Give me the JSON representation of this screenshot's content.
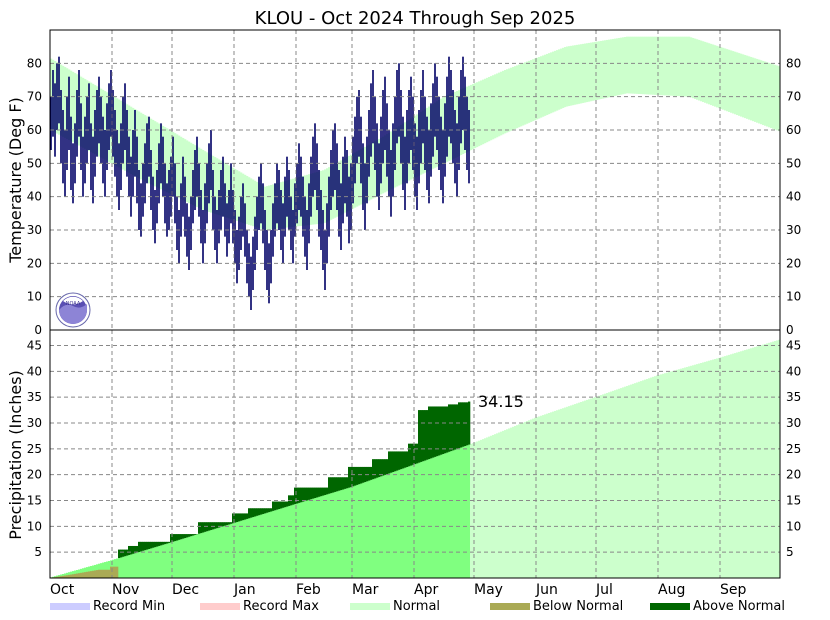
{
  "chart_data": [
    {
      "type": "temperature-range",
      "title": "KLOU - Oct 2024 Through Sep 2025",
      "ylabel": "Temperature (Deg F)",
      "ylim": [
        0,
        90
      ],
      "yticks": [
        0,
        10,
        20,
        30,
        40,
        50,
        60,
        70,
        80
      ],
      "grid": true,
      "x_months": [
        "Oct",
        "Nov",
        "Dec",
        "Jan",
        "Feb",
        "Mar",
        "Apr",
        "May",
        "Jun",
        "Jul",
        "Aug",
        "Sep"
      ],
      "x_days": [
        31,
        30,
        31,
        31,
        28,
        31,
        30,
        31,
        30,
        31,
        31,
        30
      ],
      "observed_through_day": 210,
      "normal_high_monthly": [
        76,
        65,
        54,
        43,
        48,
        58,
        70,
        78,
        85,
        88,
        88,
        82
      ],
      "normal_low_monthly": [
        55,
        45,
        36,
        30,
        32,
        41,
        50,
        59,
        67,
        71,
        70,
        63
      ],
      "observed_daily": {
        "highs": [
          70,
          78,
          74,
          80,
          82,
          72,
          66,
          60,
          70,
          76,
          64,
          56,
          62,
          72,
          78,
          68,
          58,
          64,
          70,
          74,
          62,
          58,
          66,
          72,
          76,
          70,
          64,
          60,
          68,
          74,
          78,
          72,
          66,
          60,
          56,
          62,
          70,
          74,
          66,
          58,
          52,
          60,
          66,
          58,
          48,
          44,
          50,
          56,
          62,
          64,
          54,
          46,
          42,
          48,
          56,
          62,
          58,
          50,
          44,
          48,
          52,
          58,
          50,
          40,
          36,
          44,
          52,
          46,
          38,
          34,
          40,
          48,
          54,
          58,
          50,
          42,
          36,
          44,
          50,
          56,
          60,
          48,
          40,
          36,
          42,
          48,
          52,
          44,
          38,
          42,
          50,
          42,
          36,
          30,
          34,
          40,
          44,
          38,
          30,
          26,
          22,
          28,
          34,
          40,
          46,
          50,
          44,
          36,
          30,
          26,
          30,
          38,
          44,
          50,
          48,
          42,
          38,
          46,
          52,
          48,
          40,
          36,
          44,
          50,
          56,
          52,
          46,
          40,
          36,
          44,
          52,
          58,
          62,
          56,
          48,
          42,
          36,
          30,
          38,
          46,
          54,
          60,
          62,
          56,
          48,
          44,
          52,
          58,
          54,
          46,
          50,
          58,
          64,
          70,
          72,
          64,
          56,
          50,
          58,
          66,
          74,
          78,
          70,
          62,
          56,
          64,
          72,
          76,
          68,
          60,
          54,
          62,
          70,
          78,
          80,
          72,
          64,
          58,
          66,
          72,
          76,
          70,
          62,
          58,
          66,
          72,
          78,
          70,
          64,
          60,
          68,
          74,
          80,
          76,
          70,
          64,
          60,
          68,
          76,
          82,
          78,
          72,
          66,
          62,
          70,
          78,
          82,
          76,
          70,
          66,
          74
        ],
        "lows": [
          54,
          58,
          52,
          60,
          62,
          50,
          44,
          40,
          48,
          54,
          42,
          38,
          44,
          52,
          58,
          48,
          40,
          44,
          50,
          54,
          42,
          38,
          46,
          52,
          56,
          50,
          44,
          40,
          48,
          54,
          58,
          52,
          46,
          40,
          36,
          42,
          50,
          54,
          46,
          40,
          34,
          40,
          46,
          38,
          30,
          28,
          34,
          38,
          44,
          46,
          36,
          30,
          26,
          32,
          38,
          44,
          40,
          32,
          28,
          30,
          34,
          40,
          32,
          24,
          20,
          28,
          34,
          28,
          22,
          18,
          24,
          32,
          36,
          40,
          34,
          26,
          20,
          26,
          32,
          38,
          42,
          30,
          24,
          20,
          26,
          30,
          34,
          28,
          22,
          26,
          32,
          26,
          20,
          14,
          18,
          24,
          28,
          22,
          14,
          10,
          6,
          12,
          18,
          24,
          30,
          32,
          26,
          18,
          12,
          8,
          14,
          22,
          28,
          32,
          30,
          24,
          20,
          28,
          34,
          30,
          24,
          20,
          28,
          32,
          36,
          34,
          28,
          22,
          18,
          26,
          34,
          40,
          42,
          36,
          28,
          24,
          18,
          12,
          20,
          28,
          36,
          40,
          42,
          36,
          28,
          24,
          32,
          38,
          34,
          26,
          30,
          38,
          44,
          50,
          52,
          44,
          36,
          30,
          38,
          46,
          52,
          56,
          48,
          40,
          36,
          44,
          50,
          54,
          46,
          40,
          34,
          40,
          48,
          56,
          58,
          50,
          42,
          36,
          44,
          50,
          54,
          48,
          40,
          36,
          44,
          50,
          56,
          48,
          42,
          38,
          46,
          52,
          58,
          54,
          48,
          42,
          38,
          46,
          52,
          58,
          56,
          50,
          44,
          40,
          48,
          56,
          60,
          54,
          48,
          44,
          52
        ]
      }
    },
    {
      "type": "cumulative-precipitation",
      "ylabel": "Precipitation (Inches)",
      "ylim": [
        0,
        48
      ],
      "yticks": [
        5,
        10,
        15,
        20,
        25,
        30,
        35,
        40,
        45
      ],
      "grid": true,
      "x_months": [
        "Oct",
        "Nov",
        "Dec",
        "Jan",
        "Feb",
        "Mar",
        "Apr",
        "May",
        "Jun",
        "Jul",
        "Aug",
        "Sep"
      ],
      "normal_cumulative_month_end": [
        3.4,
        6.9,
        10.6,
        14.3,
        17.6,
        21.9,
        26.1,
        31.0,
        35.0,
        39.2,
        42.6,
        46.1
      ],
      "observed_cumulative": {
        "days": [
          0,
          10,
          25,
          31,
          35,
          40,
          45,
          61,
          75,
          92,
          100,
          112,
          120,
          123,
          140,
          150,
          162,
          170,
          180,
          185,
          190,
          200,
          205,
          210
        ],
        "values": [
          0,
          0.6,
          1.6,
          2.2,
          5.5,
          6.2,
          7.0,
          8.5,
          10.8,
          12.5,
          13.5,
          14.8,
          16.0,
          17.5,
          19.5,
          21.5,
          23.0,
          24.5,
          26.0,
          32.5,
          33.2,
          33.6,
          34.0,
          34.15
        ]
      },
      "annotation": "34.15"
    }
  ],
  "legend": [
    {
      "label": "Record Min",
      "color": "#ccccff"
    },
    {
      "label": "Record Max",
      "color": "#ffcccc"
    },
    {
      "label": "Normal",
      "color": "#ccffcc"
    },
    {
      "label": "Below Normal",
      "color": "#aaaa55"
    },
    {
      "label": "Above Normal",
      "color": "#006600"
    }
  ],
  "colors": {
    "observed_temp": "#000066",
    "normal_band": "#ccffcc",
    "normal_observed": "#80ff80",
    "below_normal": "#aaaa55",
    "above_normal": "#006600"
  },
  "logo": {
    "icon": "noaa-logo",
    "text": "NOAA"
  }
}
